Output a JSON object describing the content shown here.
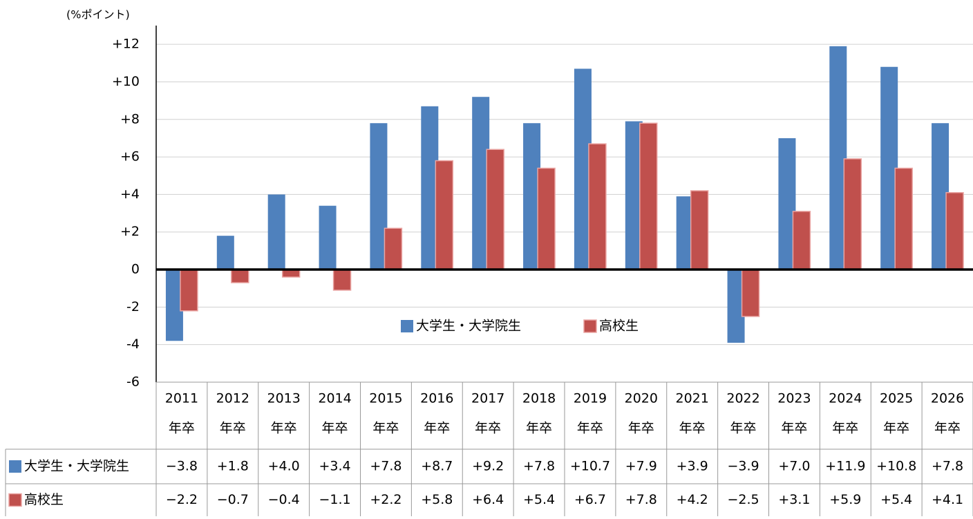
{
  "chart_data": {
    "type": "bar",
    "y_unit_label": "(%ポイント)",
    "categories": [
      "2011",
      "2012",
      "2013",
      "2014",
      "2015",
      "2016",
      "2017",
      "2018",
      "2019",
      "2020",
      "2021",
      "2022",
      "2023",
      "2024",
      "2025",
      "2026"
    ],
    "category_suffix": "年卒",
    "series": [
      {
        "name": "大学生・大学院生",
        "color": "#4f81bd",
        "values": [
          -3.8,
          1.8,
          4.0,
          3.4,
          7.8,
          8.7,
          9.2,
          7.8,
          10.7,
          7.9,
          3.9,
          -3.9,
          7.0,
          11.9,
          10.8,
          7.8
        ],
        "value_labels": [
          "−3.8",
          "+1.8",
          "+4.0",
          "+3.4",
          "+7.8",
          "+8.7",
          "+9.2",
          "+7.8",
          "+10.7",
          "+7.9",
          "+3.9",
          "−3.9",
          "+7.0",
          "+11.9",
          "+10.8",
          "+7.8"
        ]
      },
      {
        "name": "高校生",
        "color": "#c0504d",
        "values": [
          -2.2,
          -0.7,
          -0.4,
          -1.1,
          2.2,
          5.8,
          6.4,
          5.4,
          6.7,
          7.8,
          4.2,
          -2.5,
          3.1,
          5.9,
          5.4,
          4.1
        ],
        "value_labels": [
          "−2.2",
          "−0.7",
          "−0.4",
          "−1.1",
          "+2.2",
          "+5.8",
          "+6.4",
          "+5.4",
          "+6.7",
          "+7.8",
          "+4.2",
          "−2.5",
          "+3.1",
          "+5.9",
          "+5.4",
          "+4.1"
        ]
      }
    ],
    "ylim": [
      -6,
      13
    ],
    "yticks": [
      {
        "value": 12,
        "label": "+12"
      },
      {
        "value": 10,
        "label": "+10"
      },
      {
        "value": 8,
        "label": "+8"
      },
      {
        "value": 6,
        "label": "+6"
      },
      {
        "value": 4,
        "label": "+4"
      },
      {
        "value": 2,
        "label": "+2"
      },
      0,
      -2,
      -4,
      -6
    ],
    "grid": true
  }
}
